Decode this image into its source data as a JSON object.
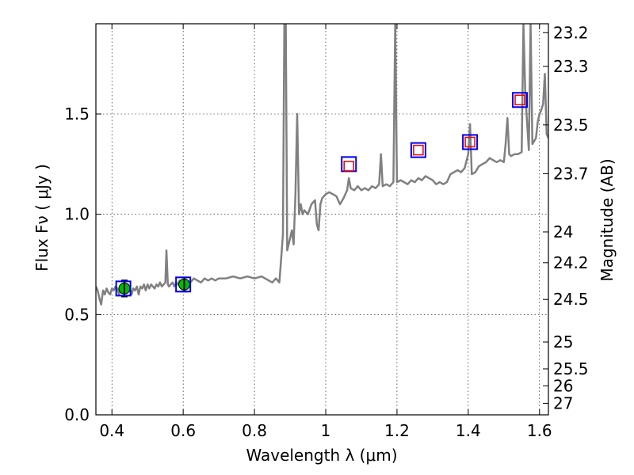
{
  "chart_data": {
    "type": "scatter",
    "xlabel": "Wavelength  λ (μm)",
    "ylabel": "Flux  Fν  ( μJy )",
    "ylabel_right": "Magnitude (AB)",
    "xlim": [
      0.355,
      1.625
    ],
    "ylim": [
      0.0,
      1.95
    ],
    "grid": true,
    "x_ticks": [
      0.4,
      0.6,
      0.8,
      1.0,
      1.2,
      1.4,
      1.6
    ],
    "x_tick_labels": [
      "0.4",
      "0.6",
      "0.8",
      "1",
      "1.2",
      "1.4",
      "1.6"
    ],
    "y_ticks": [
      0.0,
      0.5,
      1.0,
      1.5
    ],
    "y_tick_labels": [
      "0.0",
      "0.5",
      "1.0",
      "1.5"
    ],
    "right_ticks": [
      {
        "label": "23.2",
        "mag": 23.2
      },
      {
        "label": "23.3",
        "mag": 23.3
      },
      {
        "label": "23.5",
        "mag": 23.5
      },
      {
        "label": "23.7",
        "mag": 23.7
      },
      {
        "label": "24",
        "mag": 24.0
      },
      {
        "label": "24.2",
        "mag": 24.2
      },
      {
        "label": "24.5",
        "mag": 24.5
      },
      {
        "label": "25",
        "mag": 25.0
      },
      {
        "label": "25.5",
        "mag": 25.5
      },
      {
        "label": "26",
        "mag": 26.0
      },
      {
        "label": "27",
        "mag": 27.0
      }
    ],
    "series": [
      {
        "kind": "spectrum",
        "color": "#808080",
        "points": [
          [
            0.355,
            0.64
          ],
          [
            0.36,
            0.62
          ],
          [
            0.365,
            0.58
          ],
          [
            0.37,
            0.55
          ],
          [
            0.375,
            0.62
          ],
          [
            0.38,
            0.6
          ],
          [
            0.385,
            0.63
          ],
          [
            0.39,
            0.61
          ],
          [
            0.395,
            0.6
          ],
          [
            0.4,
            0.63
          ],
          [
            0.405,
            0.62
          ],
          [
            0.41,
            0.64
          ],
          [
            0.415,
            0.63
          ],
          [
            0.42,
            0.6
          ],
          [
            0.425,
            0.64
          ],
          [
            0.43,
            0.62
          ],
          [
            0.435,
            0.66
          ],
          [
            0.44,
            0.62
          ],
          [
            0.445,
            0.65
          ],
          [
            0.45,
            0.63
          ],
          [
            0.455,
            0.6
          ],
          [
            0.46,
            0.63
          ],
          [
            0.465,
            0.62
          ],
          [
            0.47,
            0.64
          ],
          [
            0.475,
            0.6
          ],
          [
            0.48,
            0.64
          ],
          [
            0.485,
            0.63
          ],
          [
            0.49,
            0.65
          ],
          [
            0.495,
            0.62
          ],
          [
            0.5,
            0.65
          ],
          [
            0.505,
            0.63
          ],
          [
            0.51,
            0.65
          ],
          [
            0.515,
            0.64
          ],
          [
            0.52,
            0.63
          ],
          [
            0.525,
            0.65
          ],
          [
            0.53,
            0.64
          ],
          [
            0.535,
            0.66
          ],
          [
            0.54,
            0.64
          ],
          [
            0.545,
            0.65
          ],
          [
            0.55,
            0.66
          ],
          [
            0.553,
            0.82
          ],
          [
            0.557,
            0.65
          ],
          [
            0.56,
            0.64
          ],
          [
            0.565,
            0.65
          ],
          [
            0.57,
            0.66
          ],
          [
            0.575,
            0.64
          ],
          [
            0.58,
            0.66
          ],
          [
            0.585,
            0.65
          ],
          [
            0.59,
            0.67
          ],
          [
            0.595,
            0.65
          ],
          [
            0.6,
            0.66
          ],
          [
            0.61,
            0.67
          ],
          [
            0.62,
            0.66
          ],
          [
            0.63,
            0.68
          ],
          [
            0.64,
            0.67
          ],
          [
            0.65,
            0.66
          ],
          [
            0.66,
            0.68
          ],
          [
            0.67,
            0.67
          ],
          [
            0.68,
            0.68
          ],
          [
            0.69,
            0.67
          ],
          [
            0.7,
            0.68
          ],
          [
            0.72,
            0.68
          ],
          [
            0.74,
            0.69
          ],
          [
            0.76,
            0.68
          ],
          [
            0.78,
            0.69
          ],
          [
            0.8,
            0.68
          ],
          [
            0.82,
            0.69
          ],
          [
            0.84,
            0.67
          ],
          [
            0.85,
            0.66
          ],
          [
            0.86,
            0.68
          ],
          [
            0.87,
            0.66
          ],
          [
            0.875,
            0.78
          ],
          [
            0.88,
            0.9
          ],
          [
            0.884,
            1.95
          ],
          [
            0.888,
            1.95
          ],
          [
            0.892,
            0.82
          ],
          [
            0.9,
            0.88
          ],
          [
            0.905,
            0.92
          ],
          [
            0.91,
            0.85
          ],
          [
            0.915,
            1.1
          ],
          [
            0.92,
            1.5
          ],
          [
            0.925,
            1.0
          ],
          [
            0.93,
            1.05
          ],
          [
            0.935,
            1.0
          ],
          [
            0.94,
            1.02
          ],
          [
            0.95,
            1.0
          ],
          [
            0.96,
            1.05
          ],
          [
            0.97,
            1.07
          ],
          [
            0.975,
            0.95
          ],
          [
            0.98,
            0.92
          ],
          [
            0.985,
            1.05
          ],
          [
            0.99,
            1.08
          ],
          [
            1.0,
            1.1
          ],
          [
            1.01,
            1.11
          ],
          [
            1.02,
            1.1
          ],
          [
            1.03,
            1.09
          ],
          [
            1.04,
            1.05
          ],
          [
            1.05,
            1.08
          ],
          [
            1.06,
            1.12
          ],
          [
            1.065,
            1.18
          ],
          [
            1.07,
            1.13
          ],
          [
            1.08,
            1.12
          ],
          [
            1.09,
            1.14
          ],
          [
            1.1,
            1.12
          ],
          [
            1.11,
            1.13
          ],
          [
            1.12,
            1.12
          ],
          [
            1.13,
            1.14
          ],
          [
            1.14,
            1.13
          ],
          [
            1.15,
            1.15
          ],
          [
            1.155,
            1.3
          ],
          [
            1.16,
            1.14
          ],
          [
            1.17,
            1.15
          ],
          [
            1.18,
            1.14
          ],
          [
            1.19,
            1.16
          ],
          [
            1.195,
            1.95
          ],
          [
            1.2,
            1.16
          ],
          [
            1.21,
            1.17
          ],
          [
            1.22,
            1.16
          ],
          [
            1.23,
            1.15
          ],
          [
            1.24,
            1.17
          ],
          [
            1.25,
            1.16
          ],
          [
            1.26,
            1.18
          ],
          [
            1.27,
            1.17
          ],
          [
            1.28,
            1.19
          ],
          [
            1.29,
            1.18
          ],
          [
            1.3,
            1.17
          ],
          [
            1.31,
            1.15
          ],
          [
            1.32,
            1.16
          ],
          [
            1.33,
            1.15
          ],
          [
            1.34,
            1.16
          ],
          [
            1.35,
            1.2
          ],
          [
            1.36,
            1.21
          ],
          [
            1.37,
            1.22
          ],
          [
            1.38,
            1.21
          ],
          [
            1.39,
            1.23
          ],
          [
            1.4,
            1.3
          ],
          [
            1.405,
            1.45
          ],
          [
            1.41,
            1.2
          ],
          [
            1.42,
            1.21
          ],
          [
            1.43,
            1.24
          ],
          [
            1.44,
            1.25
          ],
          [
            1.45,
            1.26
          ],
          [
            1.46,
            1.28
          ],
          [
            1.47,
            1.27
          ],
          [
            1.48,
            1.26
          ],
          [
            1.49,
            1.27
          ],
          [
            1.5,
            1.26
          ],
          [
            1.505,
            1.35
          ],
          [
            1.51,
            1.48
          ],
          [
            1.515,
            1.3
          ],
          [
            1.52,
            1.29
          ],
          [
            1.53,
            1.3
          ],
          [
            1.54,
            1.3
          ],
          [
            1.55,
            1.31
          ],
          [
            1.555,
            1.95
          ],
          [
            1.56,
            1.6
          ],
          [
            1.57,
            1.32
          ],
          [
            1.575,
            1.95
          ],
          [
            1.58,
            1.35
          ],
          [
            1.59,
            1.38
          ],
          [
            1.595,
            1.46
          ],
          [
            1.6,
            1.5
          ],
          [
            1.605,
            1.52
          ],
          [
            1.61,
            1.55
          ],
          [
            1.615,
            1.7
          ],
          [
            1.62,
            1.4
          ],
          [
            1.625,
            1.38
          ]
        ]
      },
      {
        "kind": "observed",
        "color": "#00bb00",
        "points": [
          {
            "x": 0.435,
            "y": 0.63,
            "yerr": 0.04
          },
          {
            "x": 0.603,
            "y": 0.65,
            "yerr": 0.035
          }
        ]
      },
      {
        "kind": "model-blue",
        "color": "#0000ee",
        "points": [
          {
            "x": 0.432,
            "y": 0.63
          },
          {
            "x": 0.6,
            "y": 0.65
          },
          {
            "x": 1.065,
            "y": 1.25
          },
          {
            "x": 1.26,
            "y": 1.32
          },
          {
            "x": 1.405,
            "y": 1.36
          },
          {
            "x": 1.545,
            "y": 1.57
          }
        ]
      },
      {
        "kind": "model-red",
        "color": "#ee0000",
        "points": [
          {
            "x": 1.065,
            "y": 1.24
          },
          {
            "x": 1.26,
            "y": 1.32
          },
          {
            "x": 1.405,
            "y": 1.36
          },
          {
            "x": 1.545,
            "y": 1.57
          }
        ]
      }
    ]
  }
}
